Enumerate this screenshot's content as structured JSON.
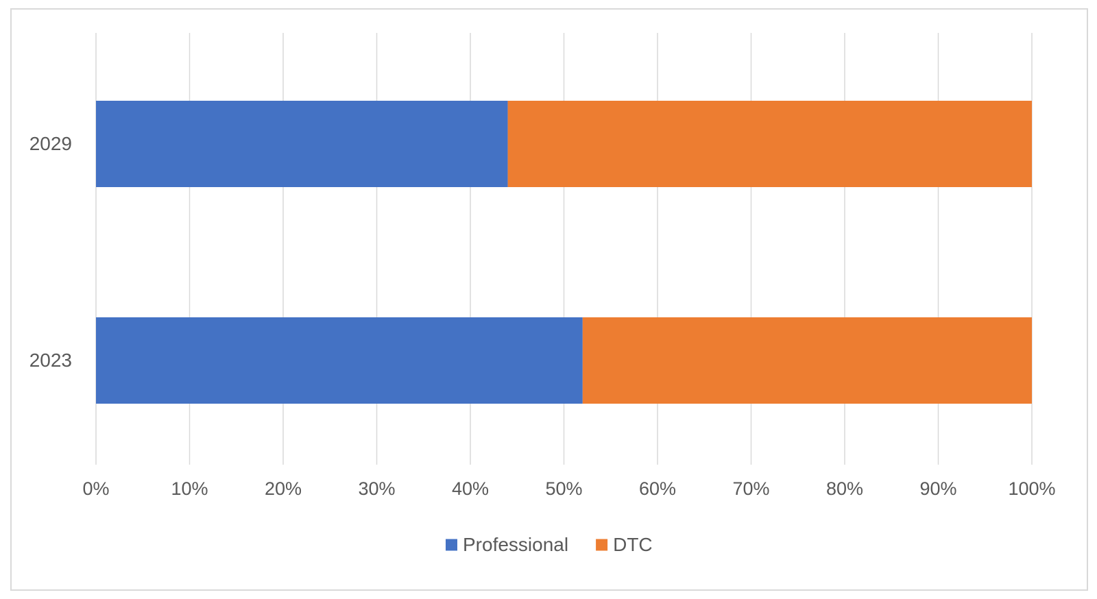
{
  "chart_data": {
    "type": "bar",
    "orientation": "horizontal",
    "stacked": "percent",
    "title": "",
    "xlabel": "",
    "ylabel": "",
    "categories": [
      "2029",
      "2023"
    ],
    "series": [
      {
        "name": "Professional",
        "color": "#4472C4",
        "values": [
          44,
          52
        ]
      },
      {
        "name": "DTC",
        "color": "#ED7D31",
        "values": [
          56,
          48
        ]
      }
    ],
    "xlim": [
      0,
      100
    ],
    "xticks": [
      0,
      10,
      20,
      30,
      40,
      50,
      60,
      70,
      80,
      90,
      100
    ],
    "xtick_labels": [
      "0%",
      "10%",
      "20%",
      "30%",
      "40%",
      "50%",
      "60%",
      "70%",
      "80%",
      "90%",
      "100%"
    ],
    "grid": true,
    "legend": "bottom",
    "colors": {
      "grid": "#D9D9D9",
      "border": "#D9D9D9",
      "text": "#595959"
    }
  }
}
